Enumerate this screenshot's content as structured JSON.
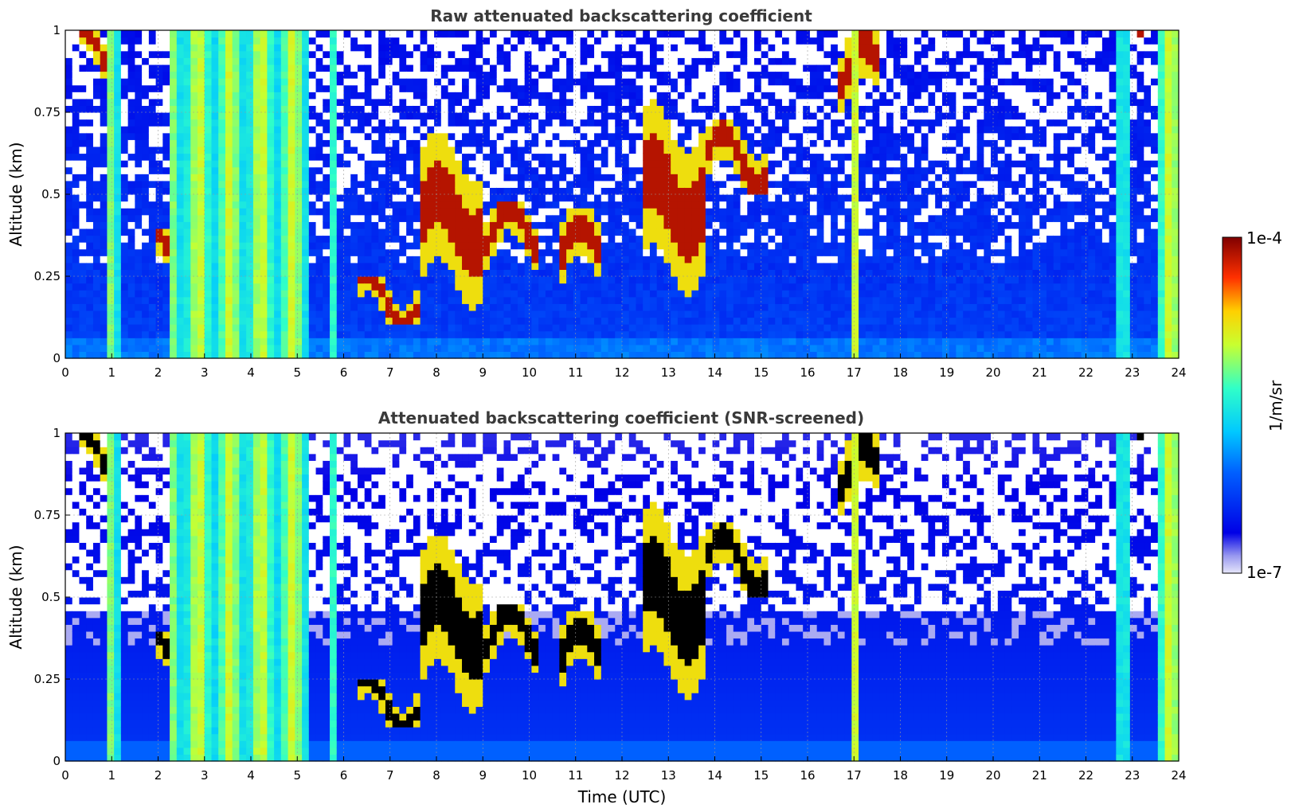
{
  "chart_data": [
    {
      "type": "heatmap",
      "title": "Raw attenuated backscattering coefficient",
      "xlabel": "",
      "ylabel": "Altitude (km)",
      "xlim": [
        0,
        24
      ],
      "ylim": [
        0,
        1
      ],
      "xticks": [
        "0",
        "1",
        "2",
        "3",
        "4",
        "5",
        "6",
        "7",
        "8",
        "9",
        "10",
        "11",
        "12",
        "13",
        "14",
        "15",
        "16",
        "17",
        "18",
        "19",
        "20",
        "21",
        "22",
        "23",
        "24"
      ],
      "yticks": [
        "0",
        "0.25",
        "0.5",
        "0.75",
        "1"
      ],
      "grid": true,
      "screened": false,
      "cloud_layers": [
        {
          "t": [
            0.3,
            0.9
          ],
          "alt": [
            0.85,
            1.0
          ]
        },
        {
          "t": [
            2.0,
            2.3
          ],
          "alt": [
            0.22,
            0.4
          ]
        },
        {
          "t": [
            6.3,
            7.6
          ],
          "alt": [
            0.11,
            0.25
          ]
        },
        {
          "t": [
            7.6,
            9.0
          ],
          "alt": [
            0.15,
            0.7
          ]
        },
        {
          "t": [
            9.0,
            10.2
          ],
          "alt": [
            0.28,
            0.48
          ]
        },
        {
          "t": [
            10.7,
            11.6
          ],
          "alt": [
            0.2,
            0.45
          ]
        },
        {
          "t": [
            12.5,
            13.8
          ],
          "alt": [
            0.18,
            0.8
          ]
        },
        {
          "t": [
            13.8,
            15.1
          ],
          "alt": [
            0.5,
            0.72
          ]
        },
        {
          "t": [
            16.6,
            17.6
          ],
          "alt": [
            0.75,
            1.0
          ]
        },
        {
          "t": [
            23.1,
            23.4
          ],
          "alt": [
            0.9,
            1.0
          ]
        }
      ],
      "precipitation_columns": [
        {
          "t": [
            0.9,
            1.2
          ]
        },
        {
          "t": [
            2.3,
            4.0
          ]
        },
        {
          "t": [
            4.0,
            5.3
          ]
        },
        {
          "t": [
            5.7,
            5.9
          ]
        },
        {
          "t": [
            16.9,
            17.1
          ]
        },
        {
          "t": [
            22.7,
            23.0
          ]
        },
        {
          "t": [
            23.5,
            24.0
          ]
        }
      ]
    },
    {
      "type": "heatmap",
      "title": "Attenuated backscattering coefficient (SNR-screened)",
      "xlabel": "Time (UTC)",
      "ylabel": "Altitude (km)",
      "xlim": [
        0,
        24
      ],
      "ylim": [
        0,
        1
      ],
      "xticks": [
        "0",
        "1",
        "2",
        "3",
        "4",
        "5",
        "6",
        "7",
        "8",
        "9",
        "10",
        "11",
        "12",
        "13",
        "14",
        "15",
        "16",
        "17",
        "18",
        "19",
        "20",
        "21",
        "22",
        "23",
        "24"
      ],
      "yticks": [
        "0",
        "0.25",
        "0.5",
        "0.75",
        "1"
      ],
      "grid": true,
      "screened": true,
      "saturated_color": "#000000"
    }
  ],
  "colorbar": {
    "label": "1/m/sr",
    "max_label": "1e-4",
    "min_label": "1e-7",
    "scale": "log",
    "colormap": "jet"
  }
}
